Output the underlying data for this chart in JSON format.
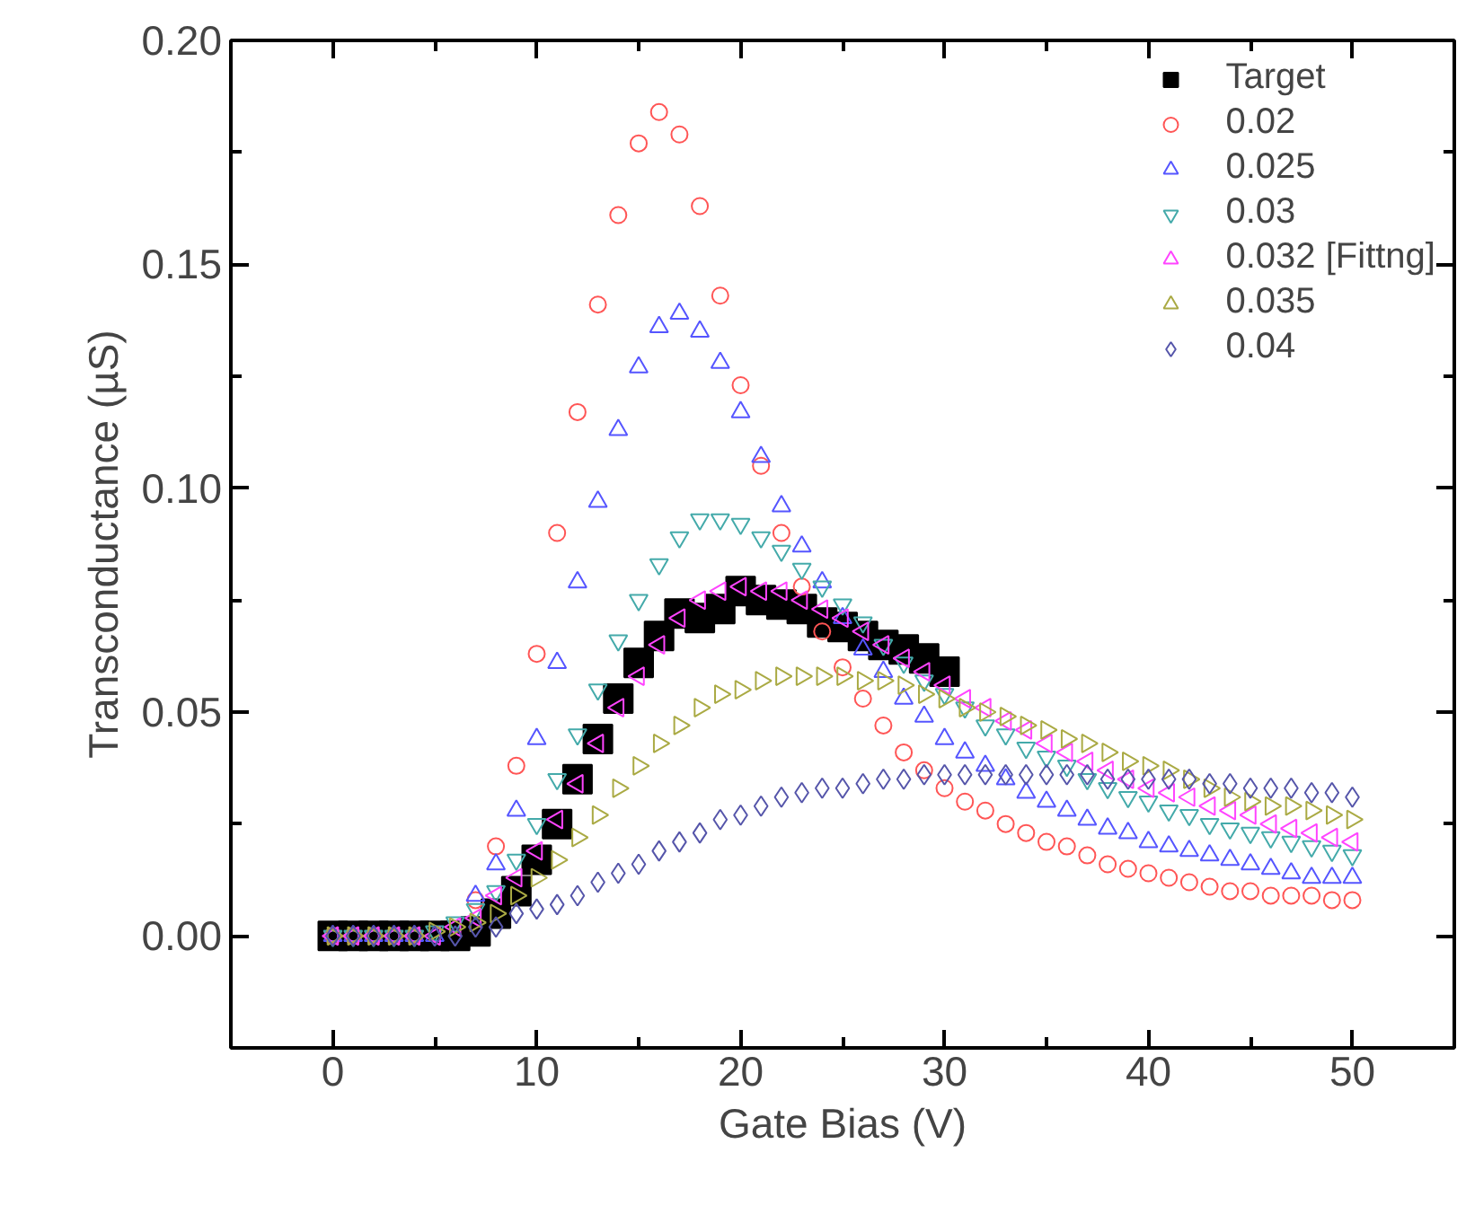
{
  "chart_data": {
    "type": "scatter",
    "xlabel": "Gate Bias (V)",
    "ylabel": "Transconductance (µS)",
    "x": [
      0,
      1,
      2,
      3,
      4,
      5,
      6,
      7,
      8,
      9,
      10,
      11,
      12,
      13,
      14,
      15,
      16,
      17,
      18,
      19,
      20,
      21,
      22,
      23,
      24,
      25,
      26,
      27,
      28,
      29,
      30,
      31,
      32,
      33,
      34,
      35,
      36,
      37,
      38,
      39,
      40,
      41,
      42,
      43,
      44,
      45,
      46,
      47,
      48,
      49,
      50
    ],
    "xlim": [
      -5,
      55
    ],
    "xticks": [
      0,
      10,
      20,
      30,
      40,
      50
    ],
    "ylim": [
      -0.025,
      0.2
    ],
    "yticks": [
      {
        "value": 0,
        "label": "0.00"
      },
      {
        "value": 0.05,
        "label": "0.05"
      },
      {
        "value": 0.1,
        "label": "0.10"
      },
      {
        "value": 0.15,
        "label": "0.15"
      },
      {
        "value": 0.2,
        "label": "0.20"
      }
    ],
    "grid": false,
    "legend": "top right",
    "series": [
      {
        "name": "Target",
        "color": "#000000",
        "marker": "square",
        "x": [
          0,
          1,
          2,
          3,
          4,
          5,
          6,
          7,
          8,
          9,
          10,
          11,
          12,
          13,
          14,
          15,
          16,
          17,
          18,
          19,
          20,
          21,
          22,
          23,
          24,
          25,
          26,
          27,
          28,
          29,
          30
        ],
        "values": [
          0,
          0,
          0,
          0,
          0,
          0,
          0,
          0.001,
          0.005,
          0.01,
          0.017,
          0.025,
          0.035,
          0.044,
          0.053,
          0.061,
          0.067,
          0.072,
          0.071,
          0.073,
          0.077,
          0.075,
          0.074,
          0.073,
          0.07,
          0.069,
          0.067,
          0.065,
          0.064,
          0.062,
          0.059
        ]
      },
      {
        "name": "0.02",
        "color": "#ff5555",
        "marker": "circle",
        "values": [
          0,
          0,
          0,
          0,
          0,
          null,
          null,
          0.008,
          0.02,
          0.038,
          0.063,
          0.09,
          0.117,
          0.141,
          0.161,
          0.177,
          0.184,
          0.179,
          0.163,
          0.143,
          0.123,
          0.105,
          0.09,
          0.078,
          0.068,
          0.06,
          0.053,
          0.047,
          0.041,
          0.037,
          0.033,
          0.03,
          0.028,
          0.025,
          0.023,
          0.021,
          0.02,
          0.018,
          0.016,
          0.015,
          0.014,
          0.013,
          0.012,
          0.011,
          0.01,
          0.01,
          0.009,
          0.009,
          0.009,
          0.008,
          0.008
        ]
      },
      {
        "name": "0.025",
        "color": "#5555ff",
        "marker": "triangle",
        "values": [
          0,
          0,
          0,
          0,
          0,
          0,
          null,
          0.009,
          0.016,
          0.028,
          0.044,
          0.061,
          0.079,
          0.097,
          0.113,
          0.127,
          0.136,
          0.139,
          0.135,
          0.128,
          0.117,
          0.107,
          0.096,
          0.087,
          0.079,
          0.071,
          0.064,
          0.059,
          0.053,
          0.049,
          0.044,
          0.041,
          0.038,
          0.035,
          0.032,
          0.03,
          0.028,
          0.026,
          0.024,
          0.023,
          0.021,
          0.02,
          0.019,
          0.018,
          0.017,
          0.016,
          0.015,
          0.014,
          0.013,
          0.013,
          0.013
        ]
      },
      {
        "name": "0.03",
        "color": "#44aaaa",
        "marker": "triangle_down",
        "values": [
          0,
          0,
          0,
          0,
          0,
          0.001,
          0.003,
          0.006,
          0.01,
          0.017,
          0.025,
          0.035,
          0.045,
          0.055,
          0.066,
          0.075,
          0.083,
          0.089,
          0.093,
          0.093,
          0.092,
          0.089,
          0.086,
          0.082,
          0.078,
          0.074,
          0.07,
          0.065,
          0.061,
          0.057,
          0.054,
          0.051,
          0.047,
          0.045,
          0.042,
          0.04,
          0.038,
          0.035,
          0.033,
          0.031,
          0.03,
          0.028,
          0.027,
          0.025,
          0.024,
          0.023,
          0.022,
          0.021,
          0.02,
          0.019,
          0.018
        ]
      },
      {
        "name": "0.032 [Fittng]",
        "color": "#ff44ff",
        "marker": "triangle_left",
        "values": [
          0,
          0,
          0,
          0,
          0,
          0,
          0.002,
          0.004,
          0.009,
          0.013,
          0.019,
          0.026,
          0.034,
          0.043,
          0.051,
          0.058,
          0.065,
          0.071,
          0.075,
          0.077,
          0.078,
          0.077,
          0.077,
          0.075,
          0.073,
          0.071,
          0.068,
          0.065,
          0.062,
          0.059,
          0.056,
          0.053,
          0.051,
          0.048,
          0.046,
          0.043,
          0.041,
          0.039,
          0.037,
          0.035,
          0.033,
          0.032,
          0.031,
          0.029,
          0.028,
          0.027,
          0.025,
          0.024,
          0.023,
          0.022,
          0.021
        ]
      },
      {
        "name": "0.035",
        "color": "#aaaa44",
        "marker": "triangle_right",
        "values": [
          0,
          0,
          0,
          0,
          0,
          0.001,
          0.002,
          0.003,
          0.005,
          0.009,
          0.013,
          0.017,
          0.022,
          0.027,
          0.033,
          0.038,
          0.043,
          0.047,
          0.051,
          0.054,
          0.055,
          0.057,
          0.058,
          0.058,
          0.058,
          0.058,
          0.057,
          0.057,
          0.056,
          0.054,
          0.053,
          0.051,
          0.05,
          0.049,
          0.047,
          0.046,
          0.044,
          0.043,
          0.041,
          0.039,
          0.038,
          0.037,
          0.035,
          0.033,
          0.031,
          0.03,
          0.029,
          0.029,
          0.028,
          0.027,
          0.026
        ]
      },
      {
        "name": "0.04",
        "color": "#5555aa",
        "marker": "diamond",
        "values": [
          0,
          0,
          0,
          0,
          0,
          0,
          0,
          0.002,
          0.002,
          0.005,
          0.006,
          0.007,
          0.009,
          0.012,
          0.014,
          0.016,
          0.019,
          0.021,
          0.023,
          0.026,
          0.027,
          0.029,
          0.031,
          0.032,
          0.033,
          0.033,
          0.034,
          0.035,
          0.035,
          0.036,
          0.036,
          0.036,
          0.036,
          0.036,
          0.036,
          0.036,
          0.036,
          0.036,
          0.035,
          0.035,
          0.035,
          0.035,
          0.035,
          0.034,
          0.034,
          0.033,
          0.033,
          0.033,
          0.032,
          0.032,
          0.031
        ]
      }
    ]
  }
}
